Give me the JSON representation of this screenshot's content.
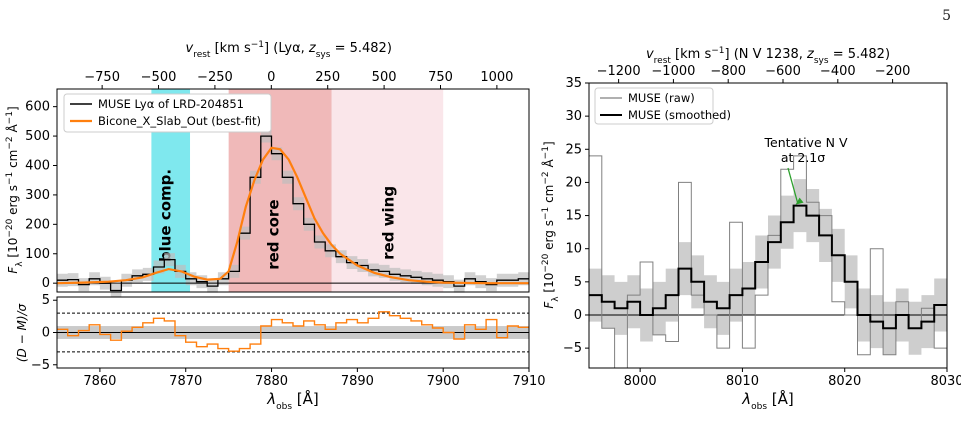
{
  "page_number": "5",
  "chart_data": [
    {
      "type": "line",
      "panel": "left-main",
      "xlabel": "λ_obs [Å]",
      "ylabel": "F_λ [10^-20 erg s^-1 cm^-2 Å^-1]",
      "top_axis_label": "v_rest [km s^-1]  (Lyα, z_sys = 5.482)",
      "xlim": [
        7855,
        7910
      ],
      "ylim": [
        -30,
        660
      ],
      "x_ticks": [
        7860,
        7870,
        7880,
        7890,
        7900,
        7910
      ],
      "y_ticks": [
        0,
        100,
        200,
        300,
        400,
        500,
        600
      ],
      "top_ticks": [
        -750,
        -500,
        -250,
        0,
        250,
        500,
        750,
        1000
      ],
      "regions": [
        {
          "label": "blue comp.",
          "x": [
            7866,
            7870.5
          ],
          "color": "#29d9e3"
        },
        {
          "label": "red core",
          "x": [
            7875,
            7887
          ],
          "color": "#e68a8a"
        },
        {
          "label": "red wing",
          "x": [
            7887,
            7900
          ],
          "color": "#f7d6dc"
        }
      ],
      "region_label_colors": {
        "blue comp.": "#22c0cf",
        "red core": "#c62828",
        "red wing": "#e3269b"
      },
      "series": [
        {
          "name": "MUSE Lyα of LRD-204851",
          "style": "step",
          "x": [
            7855,
            7856.25,
            7857.5,
            7858.75,
            7860,
            7861.25,
            7862.5,
            7863.75,
            7865,
            7866.25,
            7867.5,
            7868.75,
            7870,
            7871.25,
            7872.5,
            7873.75,
            7875,
            7876.25,
            7877.5,
            7878.75,
            7880,
            7881.25,
            7882.5,
            7883.75,
            7885,
            7886.25,
            7887.5,
            7888.75,
            7890,
            7891.25,
            7892.5,
            7893.75,
            7895,
            7896.25,
            7897.5,
            7898.75,
            7900,
            7901.25,
            7902.5,
            7903.75,
            7905,
            7906.25,
            7907.5,
            7908.75
          ],
          "y": [
            10,
            12,
            -5,
            15,
            0,
            -25,
            10,
            25,
            30,
            55,
            80,
            40,
            15,
            5,
            -10,
            15,
            40,
            170,
            360,
            500,
            440,
            360,
            270,
            200,
            140,
            110,
            90,
            70,
            60,
            45,
            40,
            30,
            25,
            20,
            15,
            10,
            5,
            -10,
            15,
            5,
            -5,
            10,
            10,
            15
          ]
        },
        {
          "name": "Bicone_X_Slab_Out (best-fit)",
          "style": "smooth",
          "color": "#ff7f0e",
          "x": [
            7855,
            7858,
            7861,
            7863,
            7865,
            7866.5,
            7868,
            7869.5,
            7871,
            7872.5,
            7874,
            7875,
            7876,
            7877,
            7878,
            7879,
            7880,
            7881,
            7882,
            7883,
            7884,
            7885,
            7886,
            7887,
            7888,
            7890,
            7892,
            7894,
            7896,
            7898,
            7900,
            7905,
            7910
          ],
          "y": [
            0,
            2,
            5,
            10,
            20,
            35,
            48,
            40,
            22,
            12,
            15,
            40,
            140,
            260,
            350,
            420,
            460,
            455,
            420,
            360,
            290,
            220,
            170,
            130,
            100,
            60,
            35,
            20,
            10,
            5,
            2,
            0,
            0
          ]
        }
      ],
      "legend": "top-left"
    },
    {
      "type": "line",
      "panel": "left-residual",
      "ylabel": "(D − M)/σ",
      "xlim": [
        7855,
        7910
      ],
      "ylim": [
        -5.5,
        5.5
      ],
      "y_ticks": [
        -5,
        0,
        5
      ],
      "reference_lines": [
        3,
        -3
      ],
      "series": [
        {
          "name": "residual",
          "style": "step",
          "color": "#ff7f0e",
          "x": [
            7855,
            7856.25,
            7857.5,
            7858.75,
            7860,
            7861.25,
            7862.5,
            7863.75,
            7865,
            7866.25,
            7867.5,
            7868.75,
            7870,
            7871.25,
            7872.5,
            7873.75,
            7875,
            7876.25,
            7877.5,
            7878.75,
            7880,
            7881.25,
            7882.5,
            7883.75,
            7885,
            7886.25,
            7887.5,
            7888.75,
            7890,
            7891.25,
            7892.5,
            7893.75,
            7895,
            7896.25,
            7897.5,
            7898.75,
            7900,
            7901.25,
            7902.5,
            7903.75,
            7905,
            7906.25,
            7907.5,
            7908.75
          ],
          "y": [
            0.5,
            -0.5,
            0.3,
            1.2,
            -0.3,
            -1.2,
            0.2,
            0.8,
            1.5,
            2.2,
            1.8,
            -0.5,
            -1.5,
            -2.2,
            -1.8,
            -2.5,
            -2.9,
            -2.5,
            -1.8,
            1.0,
            2.0,
            1.5,
            1.0,
            1.8,
            1.2,
            0.5,
            1.5,
            2.0,
            1.5,
            2.2,
            3.2,
            2.6,
            2.2,
            1.8,
            1.2,
            0.7,
            0.0,
            -1.0,
            1.2,
            0.5,
            2.0,
            -0.8,
            1.0,
            0.8
          ]
        }
      ]
    },
    {
      "type": "line",
      "panel": "right",
      "xlabel": "λ_obs [Å]",
      "ylabel": "F_λ [10^-20 erg s^-1 cm^-2 Å^-1]",
      "top_axis_label": "v_rest [km s^-1]  (N V 1238, z_sys = 5.482)",
      "xlim": [
        7995,
        8030
      ],
      "ylim": [
        -8,
        35
      ],
      "x_ticks": [
        8000,
        8010,
        8020,
        8030
      ],
      "y_ticks": [
        -5,
        0,
        5,
        10,
        15,
        20,
        25,
        30,
        35
      ],
      "top_ticks": [
        -1200,
        -1000,
        -800,
        -600,
        -400,
        -200
      ],
      "annotation": {
        "text_line1": "Tentative N V",
        "text_line2": "at 2.1σ",
        "color": "#2ca02c",
        "point": [
          8015,
          16.5
        ]
      },
      "series": [
        {
          "name": "MUSE (raw)",
          "style": "step",
          "color": "#808080",
          "x": [
            7995,
            7996.25,
            7997.5,
            7998.75,
            8000,
            8001.25,
            8002.5,
            8003.75,
            8005,
            8006.25,
            8007.5,
            8008.75,
            8010,
            8011.25,
            8012.5,
            8013.75,
            8015,
            8016.25,
            8017.5,
            8018.75,
            8020,
            8021.25,
            8022.5,
            8023.75,
            8025,
            8026.25,
            8027.5,
            8028.75
          ],
          "y": [
            24,
            -2,
            -8,
            3,
            8,
            -3,
            -4,
            20,
            3,
            0,
            -5,
            14,
            -5,
            3,
            12,
            22,
            24,
            17,
            15,
            2,
            0,
            -6,
            10,
            -6,
            2,
            -2,
            1,
            -5
          ]
        },
        {
          "name": "MUSE (smoothed)",
          "style": "step",
          "color": "#000000",
          "band": 4,
          "x": [
            7995,
            7996.25,
            7997.5,
            7998.75,
            8000,
            8001.25,
            8002.5,
            8003.75,
            8005,
            8006.25,
            8007.5,
            8008.75,
            8010,
            8011.25,
            8012.5,
            8013.75,
            8015,
            8016.25,
            8017.5,
            8018.75,
            8020,
            8021.25,
            8022.5,
            8023.75,
            8025,
            8026.25,
            8027.5,
            8028.75
          ],
          "y": [
            3,
            2,
            1,
            2,
            0,
            1,
            3,
            7,
            5,
            2,
            1,
            3,
            4,
            8,
            11,
            14,
            16.5,
            15,
            12,
            9,
            5,
            0,
            -1,
            -2,
            0,
            -2,
            -1,
            1.5
          ]
        }
      ],
      "legend": "top-left"
    }
  ]
}
